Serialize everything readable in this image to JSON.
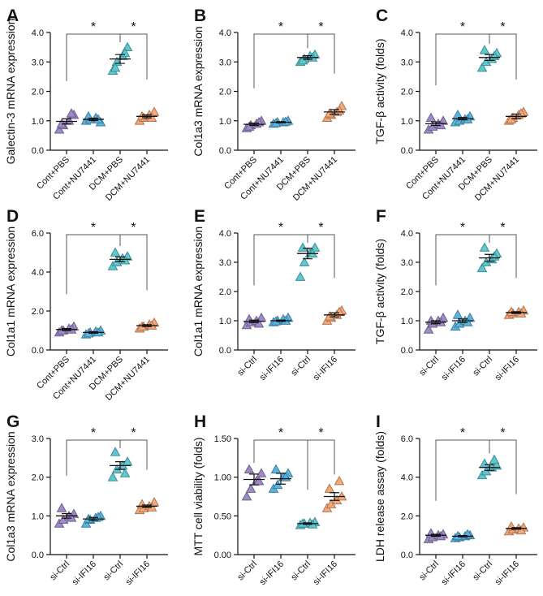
{
  "chart_data": [
    {
      "type": "dot",
      "panel": "A",
      "y_label": "Galectin-3 mRNA expression",
      "categories": [
        "Cont+PBS",
        "Cont+NU7441",
        "DCM+PBS",
        "DCM+NU7441"
      ],
      "colors": [
        "#9d8ac7",
        "#5ab4e0",
        "#5cc8d0",
        "#f5a878"
      ],
      "points": [
        [
          0.7,
          0.85,
          1.0,
          1.2,
          0.9,
          1.25
        ],
        [
          1.0,
          1.05,
          1.1,
          0.95,
          1.15,
          1.05
        ],
        [
          2.7,
          3.0,
          3.2,
          3.5,
          2.8,
          3.3
        ],
        [
          1.0,
          1.1,
          1.2,
          1.3,
          1.15,
          1.1
        ]
      ],
      "means": [
        0.98,
        1.05,
        3.1,
        1.15
      ],
      "errors": [
        0.09,
        0.04,
        0.15,
        0.05
      ],
      "ylim": [
        0,
        4
      ],
      "yticks": [
        {
          "value": 0,
          "label": "0.0"
        },
        {
          "value": 1,
          "label": "1.0"
        },
        {
          "value": 2,
          "label": "2.0"
        },
        {
          "value": 3,
          "label": "3.0"
        },
        {
          "value": 4,
          "label": "4.0"
        }
      ],
      "brackets": [
        {
          "label": "*",
          "between": [
            0,
            2
          ]
        },
        {
          "label": "*",
          "between": [
            2,
            3
          ]
        }
      ]
    },
    {
      "type": "dot",
      "panel": "B",
      "y_label": "Col1a3 mRNA expression",
      "categories": [
        "Cont+PBS",
        "Cont+NU7441",
        "DCM+PBS",
        "DCM+NU7441"
      ],
      "colors": [
        "#9d8ac7",
        "#5ab4e0",
        "#5cc8d0",
        "#f5a878"
      ],
      "points": [
        [
          0.75,
          0.85,
          0.9,
          1.0,
          0.8,
          0.95
        ],
        [
          0.9,
          0.95,
          0.95,
          1.0,
          0.92,
          0.97
        ],
        [
          3.0,
          3.1,
          3.2,
          3.25,
          3.05,
          3.15
        ],
        [
          1.1,
          1.2,
          1.3,
          1.5,
          1.25,
          1.35
        ]
      ],
      "means": [
        0.88,
        0.95,
        3.15,
        1.3
      ],
      "errors": [
        0.04,
        0.02,
        0.06,
        0.08
      ],
      "ylim": [
        0,
        4
      ],
      "yticks": [
        {
          "value": 0,
          "label": "0.0"
        },
        {
          "value": 1,
          "label": "1.0"
        },
        {
          "value": 2,
          "label": "2.0"
        },
        {
          "value": 3,
          "label": "3.0"
        },
        {
          "value": 4,
          "label": "4.0"
        }
      ],
      "brackets": [
        {
          "label": "*",
          "between": [
            0,
            2
          ]
        },
        {
          "label": "*",
          "between": [
            2,
            3
          ]
        }
      ]
    },
    {
      "type": "dot",
      "panel": "C",
      "y_label": "TGF-β activity (folds)",
      "categories": [
        "Cont+PBS",
        "Cont+NU7441",
        "DCM+PBS",
        "DCM+NU7441"
      ],
      "colors": [
        "#9d8ac7",
        "#5ab4e0",
        "#5cc8d0",
        "#f5a878"
      ],
      "points": [
        [
          0.7,
          0.8,
          0.9,
          1.0,
          1.1,
          0.85
        ],
        [
          0.95,
          1.0,
          1.05,
          1.15,
          1.2,
          1.05
        ],
        [
          2.8,
          3.0,
          3.1,
          3.3,
          3.4,
          3.2
        ],
        [
          1.0,
          1.1,
          1.2,
          1.3,
          1.05,
          1.25
        ]
      ],
      "means": [
        0.9,
        1.07,
        3.15,
        1.15
      ],
      "errors": [
        0.06,
        0.04,
        0.1,
        0.08
      ],
      "ylim": [
        0,
        4
      ],
      "yticks": [
        {
          "value": 0,
          "label": "0.0"
        },
        {
          "value": 1,
          "label": "1.0"
        },
        {
          "value": 2,
          "label": "2.0"
        },
        {
          "value": 3,
          "label": "3.0"
        },
        {
          "value": 4,
          "label": "4.0"
        }
      ],
      "brackets": [
        {
          "label": "*",
          "between": [
            0,
            2
          ]
        },
        {
          "label": "*",
          "between": [
            2,
            3
          ]
        }
      ]
    },
    {
      "type": "dot",
      "panel": "D",
      "y_label": "Col1a1 mRNA expression",
      "categories": [
        "Cont+PBS",
        "Cont+NU7441",
        "DCM+PBS",
        "DCM+NU7441"
      ],
      "colors": [
        "#9d8ac7",
        "#5ab4e0",
        "#5cc8d0",
        "#f5a878"
      ],
      "points": [
        [
          0.9,
          1.0,
          1.1,
          1.2,
          1.0,
          1.05
        ],
        [
          0.8,
          0.9,
          0.95,
          1.0,
          0.85,
          0.9
        ],
        [
          4.3,
          4.5,
          4.7,
          4.8,
          5.0,
          4.6
        ],
        [
          1.1,
          1.2,
          1.3,
          1.4,
          1.2,
          1.25
        ]
      ],
      "means": [
        1.05,
        0.9,
        4.65,
        1.25
      ],
      "errors": [
        0.05,
        0.04,
        0.12,
        0.05
      ],
      "ylim": [
        0,
        6
      ],
      "yticks": [
        {
          "value": 0,
          "label": "0.0"
        },
        {
          "value": 2,
          "label": "2.0"
        },
        {
          "value": 4,
          "label": "4.0"
        },
        {
          "value": 6,
          "label": "6.0"
        }
      ],
      "brackets": [
        {
          "label": "*",
          "between": [
            0,
            2
          ]
        },
        {
          "label": "*",
          "between": [
            2,
            3
          ]
        }
      ]
    },
    {
      "type": "dot",
      "panel": "E",
      "y_label": "Col1a1 mRNA expression",
      "categories": [
        "si-Ctrl",
        "si-IFI16",
        "si-Ctrl",
        "si-IFI16"
      ],
      "colors": [
        "#9d8ac7",
        "#5ab4e0",
        "#5cc8d0",
        "#f5a878"
      ],
      "points": [
        [
          0.85,
          0.95,
          1.0,
          1.1,
          1.05,
          0.9
        ],
        [
          0.95,
          1.0,
          1.05,
          1.1,
          0.98,
          1.0
        ],
        [
          2.5,
          3.0,
          3.3,
          3.5,
          3.5,
          3.3
        ],
        [
          1.0,
          1.1,
          1.2,
          1.35,
          1.15,
          1.3
        ]
      ],
      "means": [
        0.98,
        1.0,
        3.3,
        1.2
      ],
      "errors": [
        0.04,
        0.02,
        0.18,
        0.07
      ],
      "ylim": [
        0,
        4
      ],
      "yticks": [
        {
          "value": 0,
          "label": "0.0"
        },
        {
          "value": 1,
          "label": "1.0"
        },
        {
          "value": 2,
          "label": "2.0"
        },
        {
          "value": 3,
          "label": "3.0"
        },
        {
          "value": 4,
          "label": "4.0"
        }
      ],
      "brackets": [
        {
          "label": "*",
          "between": [
            0,
            2
          ]
        },
        {
          "label": "*",
          "between": [
            2,
            3
          ]
        }
      ]
    },
    {
      "type": "dot",
      "panel": "F",
      "y_label": "TGF-β activity (folds)",
      "categories": [
        "si-Ctrl",
        "si-IFI16",
        "si-Ctrl",
        "si-IFI16"
      ],
      "colors": [
        "#9d8ac7",
        "#5ab4e0",
        "#5cc8d0",
        "#f5a878"
      ],
      "points": [
        [
          0.7,
          0.9,
          1.0,
          1.1,
          1.0,
          0.95
        ],
        [
          0.8,
          0.9,
          1.0,
          1.1,
          1.2,
          0.95
        ],
        [
          2.8,
          3.0,
          3.1,
          3.3,
          3.5,
          3.2
        ],
        [
          1.2,
          1.25,
          1.3,
          1.35,
          1.3,
          1.25
        ]
      ],
      "means": [
        0.95,
        1.0,
        3.15,
        1.28
      ],
      "errors": [
        0.05,
        0.06,
        0.12,
        0.03
      ],
      "ylim": [
        0,
        4
      ],
      "yticks": [
        {
          "value": 0,
          "label": "0.0"
        },
        {
          "value": 1,
          "label": "1.0"
        },
        {
          "value": 2,
          "label": "2.0"
        },
        {
          "value": 3,
          "label": "3.0"
        },
        {
          "value": 4,
          "label": "4.0"
        }
      ],
      "brackets": [
        {
          "label": "*",
          "between": [
            0,
            2
          ]
        },
        {
          "label": "*",
          "between": [
            2,
            3
          ]
        }
      ]
    },
    {
      "type": "dot",
      "panel": "G",
      "y_label": "Col1a3 mRNA expression",
      "categories": [
        "si-Ctrl",
        "si-IFI16",
        "si-Ctrl",
        "si-IFI16"
      ],
      "colors": [
        "#9d8ac7",
        "#5ab4e0",
        "#5cc8d0",
        "#f5a878"
      ],
      "points": [
        [
          0.8,
          0.9,
          1.0,
          1.05,
          1.2,
          0.95
        ],
        [
          0.8,
          0.9,
          0.95,
          1.0,
          0.92,
          0.97
        ],
        [
          2.0,
          2.2,
          2.3,
          2.4,
          2.65,
          2.1
        ],
        [
          1.15,
          1.2,
          1.25,
          1.35,
          1.3,
          1.22
        ]
      ],
      "means": [
        1.0,
        0.92,
        2.3,
        1.25
      ],
      "errors": [
        0.06,
        0.04,
        0.1,
        0.03
      ],
      "ylim": [
        0,
        3
      ],
      "yticks": [
        {
          "value": 0,
          "label": "0.0"
        },
        {
          "value": 1,
          "label": "1.0"
        },
        {
          "value": 2,
          "label": "2.0"
        },
        {
          "value": 3,
          "label": "3.0"
        }
      ],
      "brackets": [
        {
          "label": "*",
          "between": [
            0,
            2
          ]
        },
        {
          "label": "*",
          "between": [
            2,
            3
          ]
        }
      ]
    },
    {
      "type": "dot",
      "panel": "H",
      "y_label": "MTT cell viability (folds)",
      "categories": [
        "si-Ctrl",
        "si-IFI16",
        "si-Ctrl",
        "si-IFI16"
      ],
      "colors": [
        "#9d8ac7",
        "#5ab4e0",
        "#5cc8d0",
        "#f5a878"
      ],
      "points": [
        [
          0.75,
          0.85,
          0.95,
          1.05,
          1.1,
          0.95
        ],
        [
          0.85,
          0.9,
          1.0,
          1.05,
          1.1,
          1.0
        ],
        [
          0.38,
          0.4,
          0.41,
          0.42,
          0.4,
          0.39
        ],
        [
          0.6,
          0.65,
          0.7,
          0.75,
          0.85,
          0.95
        ]
      ],
      "means": [
        0.97,
        0.98,
        0.4,
        0.75
      ],
      "errors": [
        0.07,
        0.07,
        0.01,
        0.05
      ],
      "ylim": [
        0,
        1.5
      ],
      "yticks": [
        {
          "value": 0,
          "label": "0.00"
        },
        {
          "value": 0.5,
          "label": "0.50"
        },
        {
          "value": 1,
          "label": "1.00"
        },
        {
          "value": 1.5,
          "label": "1.50"
        }
      ],
      "brackets": [
        {
          "label": "*",
          "between": [
            0,
            2
          ]
        },
        {
          "label": "*",
          "between": [
            2,
            3
          ]
        }
      ]
    },
    {
      "type": "dot",
      "panel": "I",
      "y_label": "LDH release assay (folds)",
      "categories": [
        "si-Ctrl",
        "si-IFI16",
        "si-Ctrl",
        "si-IFI16"
      ],
      "colors": [
        "#9d8ac7",
        "#5ab4e0",
        "#5cc8d0",
        "#f5a878"
      ],
      "points": [
        [
          0.8,
          0.9,
          1.0,
          1.05,
          1.1,
          0.95
        ],
        [
          0.85,
          0.9,
          0.95,
          1.0,
          0.95,
          1.05
        ],
        [
          4.1,
          4.3,
          4.5,
          4.6,
          4.7,
          4.9
        ],
        [
          1.2,
          1.3,
          1.35,
          1.4,
          1.45,
          1.25
        ]
      ],
      "means": [
        1.0,
        0.95,
        4.5,
        1.35
      ],
      "errors": [
        0.05,
        0.03,
        0.15,
        0.04
      ],
      "ylim": [
        0,
        6
      ],
      "yticks": [
        {
          "value": 0,
          "label": "0.0"
        },
        {
          "value": 2,
          "label": "2.0"
        },
        {
          "value": 4,
          "label": "4.0"
        },
        {
          "value": 6,
          "label": "6.0"
        }
      ],
      "brackets": [
        {
          "label": "*",
          "between": [
            0,
            2
          ]
        },
        {
          "label": "*",
          "between": [
            2,
            3
          ]
        }
      ]
    }
  ]
}
